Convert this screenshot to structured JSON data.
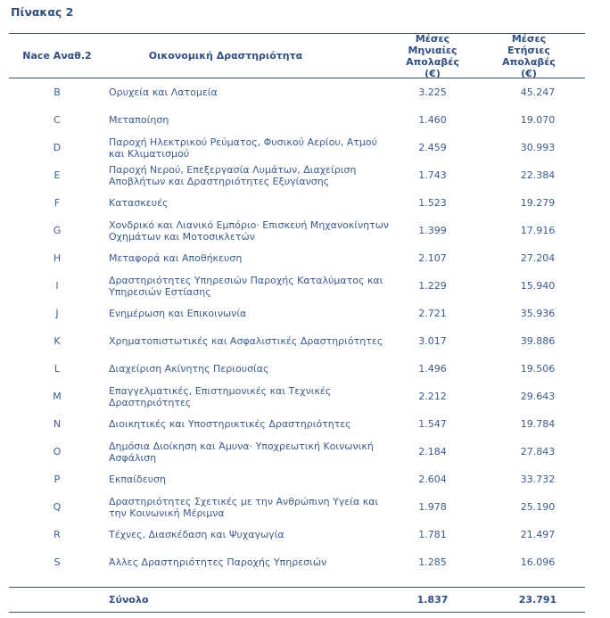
{
  "title": "Πίνακας 2",
  "headers": {
    "code": "Nace Αναθ.2",
    "activity": "Οικονομική Δραστηριότητα",
    "monthly": [
      "Μέσες",
      "Μηνιαίες",
      "Απολαβές",
      "(€)"
    ],
    "annual": [
      "Μέσες",
      "Ετήσιες",
      "Απολαβές",
      "(€)"
    ]
  },
  "rows": [
    {
      "code": "B",
      "activity": "Ορυχεία και Λατομεία",
      "monthly": "3.225",
      "annual": "45.247"
    },
    {
      "code": "C",
      "activity": "Μεταποίηση",
      "monthly": "1.460",
      "annual": "19.070"
    },
    {
      "code": "D",
      "activity": "Παροχή Ηλεκτρικού Ρεύματος, Φυσικού Αερίου, Ατμού και Κλιματισμού",
      "monthly": "2.459",
      "annual": "30.993"
    },
    {
      "code": "E",
      "activity": "Παροχή Νερού, Επεξεργασία Λυμάτων, Διαχείριση Αποβλήτων και Δραστηριότητες Εξυγίανσης",
      "monthly": "1.743",
      "annual": "22.384"
    },
    {
      "code": "F",
      "activity": "Κατασκευές",
      "monthly": "1.523",
      "annual": "19.279"
    },
    {
      "code": "G",
      "activity": "Χονδρικό και Λιανικό Εμπόριο· Επισκευή Μηχανοκίνητων Οχημάτων και Μοτοσικλετών",
      "monthly": "1.399",
      "annual": "17.916"
    },
    {
      "code": "H",
      "activity": "Μεταφορά και Αποθήκευση",
      "monthly": "2.107",
      "annual": "27.204"
    },
    {
      "code": "I",
      "activity": "Δραστηριότητες Υπηρεσιών Παροχής Καταλύματος και Υπηρεσιών Εστίασης",
      "monthly": "1.229",
      "annual": "15.940"
    },
    {
      "code": "J",
      "activity": "Ενημέρωση και Επικοινωνία",
      "monthly": "2.721",
      "annual": "35.936"
    },
    {
      "code": "K",
      "activity": "Χρηματοπιστωτικές και Ασφαλιστικές Δραστηριότητες",
      "monthly": "3.017",
      "annual": "39.886"
    },
    {
      "code": "L",
      "activity": "Διαχείριση Ακίνητης Περιουσίας",
      "monthly": "1.496",
      "annual": "19.506"
    },
    {
      "code": "M",
      "activity": "Επαγγελματικές, Επιστημονικές και Τεχνικές Δραστηριότητες",
      "monthly": "2.212",
      "annual": "29.643"
    },
    {
      "code": "N",
      "activity": "Διοικητικές και Υποστηρικτικές Δραστηριότητες",
      "monthly": "1.547",
      "annual": "19.784"
    },
    {
      "code": "O",
      "activity": "Δημόσια Διοίκηση και Άμυνα· Υποχρεωτική Κοινωνική Ασφάλιση",
      "monthly": "2.184",
      "annual": "27.843"
    },
    {
      "code": "P",
      "activity": "Εκπαίδευση",
      "monthly": "2.604",
      "annual": "33.732"
    },
    {
      "code": "Q",
      "activity": "Δραστηριότητες Σχετικές με την Ανθρώπινη Υγεία και την Κοινωνική Μέριμνα",
      "monthly": "1.978",
      "annual": "25.190"
    },
    {
      "code": "R",
      "activity": "Τέχνες, Διασκέδαση και Ψυχαγωγία",
      "monthly": "1.781",
      "annual": "21.497"
    },
    {
      "code": "S",
      "activity": "Άλλες Δραστηριότητες Παροχής Υπηρεσιών",
      "monthly": "1.285",
      "annual": "16.096"
    }
  ],
  "total": {
    "label": "Σύνολο",
    "monthly": "1.837",
    "annual": "23.791"
  }
}
